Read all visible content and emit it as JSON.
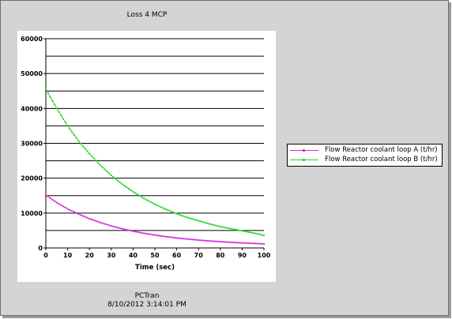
{
  "window": {
    "title": "Loss 4 MCP",
    "footer_app": "PCTran",
    "footer_timestamp": "8/10/2012 3:14:01 PM"
  },
  "legend": {
    "items": [
      {
        "label": "Flow Reactor coolant loop A (t/hr)",
        "color": "#d62ad6"
      },
      {
        "label": "Flow Reactor coolant loop B (t/hr)",
        "color": "#2bd62b"
      }
    ]
  },
  "chart_data": {
    "type": "line",
    "title": "",
    "xlabel": "Time (sec)",
    "ylabel": "",
    "xlim": [
      0,
      100
    ],
    "ylim": [
      0,
      60000
    ],
    "x_ticks": [
      "0",
      "10",
      "20",
      "30",
      "40",
      "50",
      "60",
      "70",
      "80",
      "90",
      "100"
    ],
    "y_ticks": [
      "0",
      "10000",
      "20000",
      "30000",
      "40000",
      "50000",
      "60000"
    ],
    "grid": "horizontal",
    "legend_position": "right",
    "x": [
      0,
      5,
      10,
      15,
      20,
      25,
      30,
      35,
      40,
      45,
      50,
      55,
      60,
      65,
      70,
      75,
      80,
      85,
      90,
      95,
      100
    ],
    "series": [
      {
        "name": "Flow Reactor coolant loop A (t/hr)",
        "color": "#d62ad6",
        "values": [
          15200,
          13000,
          11200,
          9700,
          8400,
          7300,
          6300,
          5500,
          4800,
          4200,
          3700,
          3250,
          2850,
          2550,
          2250,
          2000,
          1800,
          1600,
          1450,
          1300,
          1150
        ]
      },
      {
        "name": "Flow Reactor coolant loop B (t/hr)",
        "color": "#2bd62b",
        "values": [
          45500,
          40000,
          35000,
          30700,
          27000,
          23700,
          20800,
          18300,
          16100,
          14200,
          12500,
          11100,
          9800,
          8700,
          7800,
          6900,
          6100,
          5500,
          4900,
          4300,
          3600
        ]
      }
    ]
  }
}
